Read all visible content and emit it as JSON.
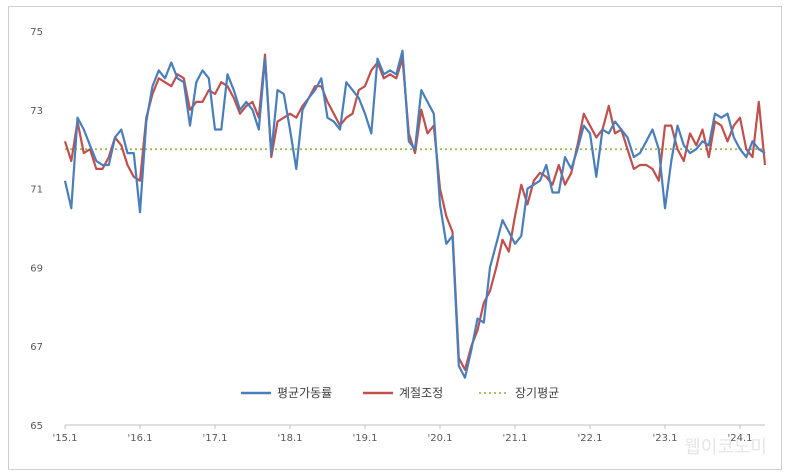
{
  "chart_data": {
    "type": "line",
    "title": "",
    "xlabel": "",
    "ylabel": "",
    "ylim": [
      65,
      75
    ],
    "yticks": [
      65,
      67,
      69,
      71,
      73,
      75
    ],
    "xticks": [
      {
        "label": "'15.1",
        "index": 0
      },
      {
        "label": "'16.1",
        "index": 12
      },
      {
        "label": "'17.1",
        "index": 24
      },
      {
        "label": "'18.1",
        "index": 36
      },
      {
        "label": "'19.1",
        "index": 48
      },
      {
        "label": "'20.1",
        "index": 60
      },
      {
        "label": "'21.1",
        "index": 72
      },
      {
        "label": "'22.1",
        "index": 84
      },
      {
        "label": "'23.1",
        "index": 96
      },
      {
        "label": "'24.1",
        "index": 108
      }
    ],
    "series": [
      {
        "name": "평균가동률",
        "color": "#4a7ebb",
        "style": "solid",
        "values": [
          71.2,
          70.5,
          72.8,
          72.5,
          72.1,
          71.7,
          71.6,
          71.6,
          72.3,
          72.5,
          71.9,
          71.9,
          70.4,
          72.7,
          73.6,
          74.0,
          73.8,
          74.2,
          73.8,
          73.7,
          72.6,
          73.7,
          74.0,
          73.8,
          72.5,
          72.5,
          73.9,
          73.5,
          73.0,
          73.2,
          73.0,
          72.5,
          74.3,
          71.9,
          73.5,
          73.4,
          72.5,
          71.5,
          73.0,
          73.3,
          73.5,
          73.8,
          72.8,
          72.7,
          72.5,
          73.7,
          73.5,
          73.3,
          72.9,
          72.4,
          74.3,
          73.9,
          74.0,
          73.9,
          74.5,
          72.2,
          72.0,
          73.5,
          73.2,
          72.9,
          70.6,
          69.6,
          69.8,
          66.5,
          66.2,
          66.9,
          67.7,
          67.6,
          69.0,
          69.6,
          70.2,
          69.9,
          69.6,
          69.8,
          71.0,
          71.1,
          71.2,
          71.6,
          70.9,
          70.9,
          71.8,
          71.5,
          72.0,
          72.6,
          72.4,
          71.3,
          72.5,
          72.4,
          72.7,
          72.5,
          72.3,
          71.8,
          71.9,
          72.2,
          72.5,
          72.0,
          70.5,
          71.7,
          72.6,
          72.1,
          71.9,
          72.0,
          72.2,
          72.1,
          72.9,
          72.8,
          72.9,
          72.3,
          72.0,
          71.8,
          72.2,
          72.0,
          71.9
        ]
      },
      {
        "name": "계절조정",
        "color": "#c0504d",
        "style": "solid",
        "values": [
          72.2,
          71.7,
          72.7,
          71.9,
          72.0,
          71.5,
          71.5,
          71.8,
          72.3,
          72.1,
          71.6,
          71.3,
          71.2,
          72.8,
          73.4,
          73.8,
          73.7,
          73.6,
          73.9,
          73.8,
          73.0,
          73.2,
          73.2,
          73.5,
          73.4,
          73.7,
          73.6,
          73.3,
          72.9,
          73.1,
          73.2,
          72.8,
          74.4,
          71.8,
          72.7,
          72.8,
          72.9,
          72.8,
          73.1,
          73.3,
          73.6,
          73.6,
          73.2,
          72.9,
          72.6,
          72.8,
          72.9,
          73.5,
          73.6,
          74.0,
          74.2,
          73.8,
          73.9,
          73.8,
          74.3,
          72.4,
          71.9,
          73.0,
          72.4,
          72.6,
          71.0,
          70.3,
          69.9,
          66.7,
          66.4,
          67.0,
          67.4,
          68.1,
          68.4,
          69.0,
          69.7,
          69.4,
          70.3,
          71.1,
          70.6,
          71.2,
          71.4,
          71.3,
          71.1,
          71.6,
          71.1,
          71.4,
          72.1,
          72.9,
          72.6,
          72.3,
          72.5,
          73.1,
          72.4,
          72.5,
          72.0,
          71.5,
          71.6,
          71.6,
          71.5,
          71.2,
          72.6,
          72.6,
          72.0,
          71.7,
          72.4,
          72.1,
          72.5,
          71.8,
          72.7,
          72.6,
          72.2,
          72.6,
          72.8,
          72.0,
          71.8,
          73.2,
          71.6
        ]
      },
      {
        "name": "장기평균",
        "color": "#9bbb59",
        "style": "dotted",
        "values": [
          72.0,
          72.0,
          72.0,
          72.0,
          72.0,
          72.0,
          72.0,
          72.0,
          72.0,
          72.0,
          72.0,
          72.0,
          72.0,
          72.0,
          72.0,
          72.0,
          72.0,
          72.0,
          72.0,
          72.0,
          72.0,
          72.0,
          72.0,
          72.0,
          72.0,
          72.0,
          72.0,
          72.0,
          72.0,
          72.0,
          72.0,
          72.0,
          72.0,
          72.0,
          72.0,
          72.0,
          72.0,
          72.0,
          72.0,
          72.0,
          72.0,
          72.0,
          72.0,
          72.0,
          72.0,
          72.0,
          72.0,
          72.0,
          72.0,
          72.0,
          72.0,
          72.0,
          72.0,
          72.0,
          72.0,
          72.0,
          72.0,
          72.0,
          72.0,
          72.0,
          72.0,
          72.0,
          72.0,
          72.0,
          72.0,
          72.0,
          72.0,
          72.0,
          72.0,
          72.0,
          72.0,
          72.0,
          72.0,
          72.0,
          72.0,
          72.0,
          72.0,
          72.0,
          72.0,
          72.0,
          72.0,
          72.0,
          72.0,
          72.0,
          72.0,
          72.0,
          72.0,
          72.0,
          72.0,
          72.0,
          72.0,
          72.0,
          72.0,
          72.0,
          72.0,
          72.0,
          72.0,
          72.0,
          72.0,
          72.0,
          72.0,
          72.0,
          72.0,
          72.0,
          72.0,
          72.0,
          72.0,
          72.0,
          72.0,
          72.0,
          72.0,
          72.0,
          72.0
        ]
      }
    ],
    "grid": false,
    "legend_position": "bottom-center"
  },
  "watermark": "웹이코노미"
}
